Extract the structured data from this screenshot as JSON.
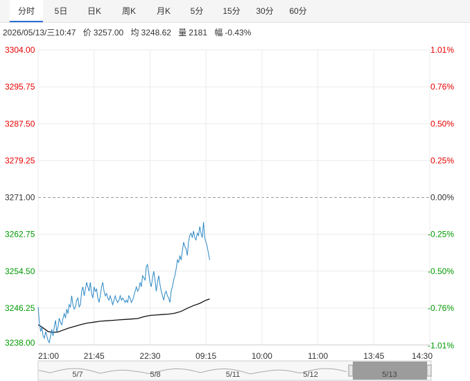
{
  "tabs": [
    "分时",
    "5日",
    "日K",
    "周K",
    "月K",
    "5分",
    "15分",
    "30分",
    "60分"
  ],
  "active_tab": 0,
  "info": {
    "datetime": "2026/05/13/三10:47",
    "price_label": "价",
    "price": "3257.00",
    "avg_label": "均",
    "avg": "3248.62",
    "volume_label": "量",
    "volume": "2181",
    "range_label": "幅",
    "range": "-0.43%"
  },
  "colors": {
    "up": "#e60000",
    "down": "#009900",
    "price_line": "#2a87c5",
    "avg_line": "#111111",
    "ref_line": "#999999",
    "navigator_selection": "#8c8c8c"
  },
  "chart_data": {
    "type": "line",
    "reference_price": 3271.0,
    "ylim": [
      3238.0,
      3304.0
    ],
    "y_ticks_left": [
      "3304.00",
      "3295.75",
      "3287.50",
      "3279.25",
      "3271.00",
      "3262.75",
      "3254.50",
      "3246.25",
      "3238.00"
    ],
    "y_ticks_right": [
      "1.01%",
      "0.76%",
      "0.50%",
      "0.25%",
      "0.00%",
      "-0.25%",
      "-0.50%",
      "-0.76%",
      "-1.01%"
    ],
    "x_ticks": [
      "21:00",
      "21:45",
      "22:30",
      "09:15",
      "10:00",
      "11:00",
      "13:45",
      "14:30"
    ],
    "x_tick_minutes": [
      0,
      45,
      90,
      135,
      180,
      225,
      270,
      315
    ],
    "x_max_minutes": 315,
    "price_series": [
      [
        0,
        3246.5
      ],
      [
        1,
        3243
      ],
      [
        2,
        3241
      ],
      [
        3,
        3242
      ],
      [
        4,
        3240
      ],
      [
        5,
        3239.5
      ],
      [
        6,
        3241
      ],
      [
        7,
        3240
      ],
      [
        8,
        3239
      ],
      [
        9,
        3238.5
      ],
      [
        10,
        3240
      ],
      [
        11,
        3241.5
      ],
      [
        12,
        3240
      ],
      [
        13,
        3242
      ],
      [
        14,
        3243.5
      ],
      [
        15,
        3241
      ],
      [
        16,
        3242
      ],
      [
        17,
        3244
      ],
      [
        18,
        3243
      ],
      [
        19,
        3242.5
      ],
      [
        20,
        3244
      ],
      [
        21,
        3245
      ],
      [
        22,
        3244
      ],
      [
        23,
        3246
      ],
      [
        24,
        3245
      ],
      [
        25,
        3247
      ],
      [
        26,
        3246.5
      ],
      [
        27,
        3249
      ],
      [
        28,
        3247
      ],
      [
        29,
        3246
      ],
      [
        30,
        3246.5
      ],
      [
        31,
        3248
      ],
      [
        32,
        3248.5
      ],
      [
        33,
        3246.5
      ],
      [
        34,
        3247
      ],
      [
        35,
        3250
      ],
      [
        36,
        3251
      ],
      [
        37,
        3249
      ],
      [
        38,
        3250.5
      ],
      [
        39,
        3252
      ],
      [
        40,
        3251
      ],
      [
        41,
        3250
      ],
      [
        42,
        3252
      ],
      [
        43,
        3249.5
      ],
      [
        44,
        3248.5
      ],
      [
        45,
        3251
      ],
      [
        46,
        3250
      ],
      [
        47,
        3250.5
      ],
      [
        48,
        3248.5
      ],
      [
        49,
        3247.5
      ],
      [
        50,
        3249
      ],
      [
        51,
        3251
      ],
      [
        52,
        3252
      ],
      [
        53,
        3250
      ],
      [
        54,
        3249
      ],
      [
        55,
        3249.5
      ],
      [
        56,
        3248.5
      ],
      [
        57,
        3248
      ],
      [
        58,
        3249
      ],
      [
        59,
        3248
      ],
      [
        60,
        3247
      ],
      [
        61,
        3248
      ],
      [
        62,
        3249
      ],
      [
        63,
        3248
      ],
      [
        64,
        3247.5
      ],
      [
        65,
        3248
      ],
      [
        66,
        3249
      ],
      [
        67,
        3248
      ],
      [
        68,
        3248.5
      ],
      [
        69,
        3248
      ],
      [
        70,
        3247.5
      ],
      [
        71,
        3248
      ],
      [
        72,
        3247.5
      ],
      [
        73,
        3249
      ],
      [
        74,
        3248.5
      ],
      [
        75,
        3247.5
      ],
      [
        76,
        3248
      ],
      [
        77,
        3249
      ],
      [
        78,
        3250
      ],
      [
        79,
        3251
      ],
      [
        80,
        3250
      ],
      [
        81,
        3250.5
      ],
      [
        82,
        3252
      ],
      [
        83,
        3251
      ],
      [
        84,
        3253.5
      ],
      [
        85,
        3253
      ],
      [
        86,
        3252.5
      ],
      [
        87,
        3255.5
      ],
      [
        88,
        3256
      ],
      [
        89,
        3254
      ],
      [
        90,
        3252
      ],
      [
        91,
        3251
      ],
      [
        92,
        3253
      ],
      [
        93,
        3254.5
      ],
      [
        94,
        3252.5
      ],
      [
        95,
        3250
      ],
      [
        96,
        3252
      ],
      [
        97,
        3253.5
      ],
      [
        98,
        3251.5
      ],
      [
        99,
        3250
      ],
      [
        100,
        3249
      ],
      [
        101,
        3248
      ],
      [
        102,
        3249.5
      ],
      [
        103,
        3250
      ],
      [
        104,
        3249
      ],
      [
        105,
        3248.5
      ],
      [
        106,
        3247.5
      ],
      [
        107,
        3250
      ],
      [
        108,
        3251
      ],
      [
        109,
        3252.5
      ],
      [
        110,
        3253.5
      ],
      [
        111,
        3255
      ],
      [
        112,
        3257
      ],
      [
        113,
        3256.5
      ],
      [
        114,
        3258
      ],
      [
        115,
        3257
      ],
      [
        116,
        3259
      ],
      [
        117,
        3261
      ],
      [
        118,
        3260
      ],
      [
        119,
        3259.5
      ],
      [
        120,
        3258
      ],
      [
        121,
        3261
      ],
      [
        122,
        3262.5
      ],
      [
        123,
        3263
      ],
      [
        124,
        3262
      ],
      [
        125,
        3263.5
      ],
      [
        126,
        3262
      ],
      [
        127,
        3261.5
      ],
      [
        128,
        3263
      ],
      [
        129,
        3262.5
      ],
      [
        130,
        3264.5
      ],
      [
        131,
        3263
      ],
      [
        132,
        3262
      ],
      [
        133,
        3265.5
      ],
      [
        134,
        3262
      ],
      [
        135,
        3261
      ],
      [
        136,
        3260
      ],
      [
        137,
        3258.5
      ],
      [
        138,
        3257
      ]
    ],
    "avg_series": [
      [
        0,
        3242.5
      ],
      [
        3,
        3242
      ],
      [
        8,
        3241
      ],
      [
        12,
        3240.8
      ],
      [
        16,
        3240.9
      ],
      [
        20,
        3241.3
      ],
      [
        25,
        3241.8
      ],
      [
        30,
        3242.2
      ],
      [
        35,
        3242.6
      ],
      [
        40,
        3242.9
      ],
      [
        45,
        3243.1
      ],
      [
        50,
        3243.3
      ],
      [
        55,
        3243.4
      ],
      [
        60,
        3243.5
      ],
      [
        65,
        3243.6
      ],
      [
        70,
        3243.7
      ],
      [
        75,
        3243.8
      ],
      [
        80,
        3243.9
      ],
      [
        85,
        3244.3
      ],
      [
        90,
        3244.6
      ],
      [
        95,
        3244.7
      ],
      [
        100,
        3244.8
      ],
      [
        105,
        3244.9
      ],
      [
        110,
        3245.1
      ],
      [
        115,
        3245.5
      ],
      [
        120,
        3246.2
      ],
      [
        125,
        3246.8
      ],
      [
        130,
        3247.3
      ],
      [
        135,
        3248.0
      ],
      [
        138,
        3248.3
      ]
    ],
    "navigator_dates": [
      "5/7",
      "5/8",
      "5/11",
      "5/12",
      "5/13"
    ]
  }
}
